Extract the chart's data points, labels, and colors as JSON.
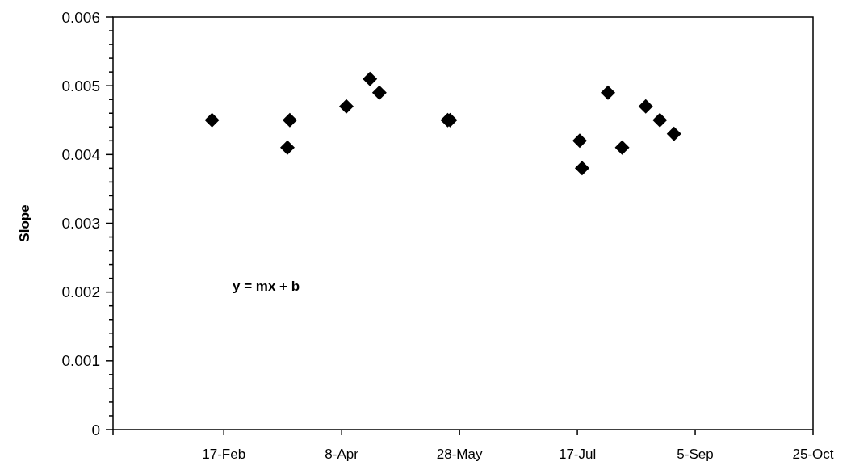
{
  "chart_data": {
    "type": "scatter",
    "ylabel": "Slope",
    "annotations": [
      "y = mx + b"
    ],
    "x": [
      "--02-12",
      "--03-17",
      "--03-16",
      "--04-10",
      "--04-20",
      "--04-24",
      "--05-23",
      "--05-24",
      "--07-18",
      "--07-19",
      "--07-30",
      "--08-05",
      "--08-15",
      "--08-21",
      "--08-27"
    ],
    "series": [
      {
        "color": "#000000",
        "values": [
          0.0045,
          0.0045,
          0.0041,
          0.0047,
          0.0051,
          0.0049,
          0.0045,
          0.0045,
          0.0042,
          0.0038,
          0.0049,
          0.0041,
          0.0047,
          0.0045,
          0.0043
        ]
      }
    ],
    "marker": "diamond",
    "grid": false,
    "xlim": [
      "--01-01",
      "--10-25"
    ],
    "xticks": [
      {
        "value": "--02-17",
        "label": "17-Feb"
      },
      {
        "value": "--04-08",
        "label": "8-Apr"
      },
      {
        "value": "--05-28",
        "label": "28-May"
      },
      {
        "value": "--07-17",
        "label": "17-Jul"
      },
      {
        "value": "--09-05",
        "label": "5-Sep"
      },
      {
        "value": "--10-25",
        "label": "25-Oct"
      }
    ],
    "ylim": [
      0,
      0.006
    ],
    "yticks": [
      {
        "value": 0,
        "label": "0"
      },
      {
        "value": 0.0002,
        "label": null
      },
      {
        "value": 0.0004,
        "label": null
      },
      {
        "value": 0.0006,
        "label": null
      },
      {
        "value": 0.0008,
        "label": null
      },
      {
        "value": 0.001,
        "label": "0.001"
      },
      {
        "value": 0.0012,
        "label": null
      },
      {
        "value": 0.0014,
        "label": null
      },
      {
        "value": 0.0016,
        "label": null
      },
      {
        "value": 0.0018,
        "label": null
      },
      {
        "value": 0.002,
        "label": "0.002"
      },
      {
        "value": 0.0022,
        "label": null
      },
      {
        "value": 0.0024,
        "label": null
      },
      {
        "value": 0.0026,
        "label": null
      },
      {
        "value": 0.0028,
        "label": null
      },
      {
        "value": 0.003,
        "label": "0.003"
      },
      {
        "value": 0.0032,
        "label": null
      },
      {
        "value": 0.0034,
        "label": null
      },
      {
        "value": 0.0036,
        "label": null
      },
      {
        "value": 0.0038,
        "label": null
      },
      {
        "value": 0.004,
        "label": "0.004"
      },
      {
        "value": 0.0042,
        "label": null
      },
      {
        "value": 0.0044,
        "label": null
      },
      {
        "value": 0.0046,
        "label": null
      },
      {
        "value": 0.0048,
        "label": null
      },
      {
        "value": 0.005,
        "label": "0.005"
      },
      {
        "value": 0.0052,
        "label": null
      },
      {
        "value": 0.0054,
        "label": null
      },
      {
        "value": 0.0056,
        "label": null
      },
      {
        "value": 0.0058,
        "label": null
      },
      {
        "value": 0.006,
        "label": "0.006"
      }
    ]
  }
}
